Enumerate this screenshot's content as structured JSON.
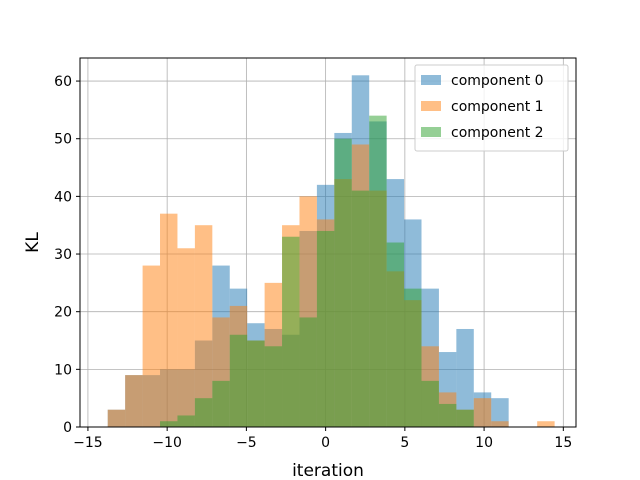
{
  "chart_data": {
    "type": "bar",
    "subtype": "overlaid-histogram",
    "title": "",
    "xlabel": "iteration",
    "ylabel": "KL",
    "xlim": [
      -15.5,
      15.8
    ],
    "ylim": [
      0,
      64
    ],
    "xticks": [
      -15,
      -10,
      -5,
      0,
      5,
      10,
      15
    ],
    "xtick_labels": [
      "−15",
      "−10",
      "−5",
      "0",
      "5",
      "10",
      "15"
    ],
    "yticks": [
      0,
      10,
      20,
      30,
      40,
      50,
      60
    ],
    "grid": true,
    "legend_position": "top-right",
    "series": [
      {
        "name": "component 0",
        "color": "#1f77b4",
        "opacity": 0.5,
        "bins": [
          {
            "x0": -13.75,
            "x1": -12.65,
            "count": 3
          },
          {
            "x0": -12.65,
            "x1": -11.55,
            "count": 9
          },
          {
            "x0": -11.55,
            "x1": -10.45,
            "count": 9
          },
          {
            "x0": -10.45,
            "x1": -9.35,
            "count": 10
          },
          {
            "x0": -9.35,
            "x1": -8.25,
            "count": 10
          },
          {
            "x0": -8.25,
            "x1": -7.15,
            "count": 15
          },
          {
            "x0": -7.15,
            "x1": -6.05,
            "count": 28
          },
          {
            "x0": -6.05,
            "x1": -4.95,
            "count": 24
          },
          {
            "x0": -4.95,
            "x1": -3.85,
            "count": 18
          },
          {
            "x0": -3.85,
            "x1": -2.75,
            "count": 17
          },
          {
            "x0": -2.75,
            "x1": -1.65,
            "count": 16
          },
          {
            "x0": -1.65,
            "x1": -0.55,
            "count": 34
          },
          {
            "x0": -0.55,
            "x1": 0.55,
            "count": 42
          },
          {
            "x0": 0.55,
            "x1": 1.65,
            "count": 51
          },
          {
            "x0": 1.65,
            "x1": 2.75,
            "count": 61
          },
          {
            "x0": 2.75,
            "x1": 3.85,
            "count": 53
          },
          {
            "x0": 3.85,
            "x1": 4.95,
            "count": 43
          },
          {
            "x0": 4.95,
            "x1": 6.05,
            "count": 36
          },
          {
            "x0": 6.05,
            "x1": 7.15,
            "count": 24
          },
          {
            "x0": 7.15,
            "x1": 8.25,
            "count": 13
          },
          {
            "x0": 8.25,
            "x1": 9.35,
            "count": 17
          },
          {
            "x0": 9.35,
            "x1": 10.45,
            "count": 6
          },
          {
            "x0": 10.45,
            "x1": 11.55,
            "count": 5
          }
        ]
      },
      {
        "name": "component 1",
        "color": "#ff7f0e",
        "opacity": 0.5,
        "bins": [
          {
            "x0": -13.75,
            "x1": -12.65,
            "count": 3
          },
          {
            "x0": -12.65,
            "x1": -11.55,
            "count": 9
          },
          {
            "x0": -11.55,
            "x1": -10.45,
            "count": 28
          },
          {
            "x0": -10.45,
            "x1": -9.35,
            "count": 37
          },
          {
            "x0": -9.35,
            "x1": -8.25,
            "count": 31
          },
          {
            "x0": -8.25,
            "x1": -7.15,
            "count": 35
          },
          {
            "x0": -7.15,
            "x1": -6.05,
            "count": 19
          },
          {
            "x0": -6.05,
            "x1": -4.95,
            "count": 21
          },
          {
            "x0": -4.95,
            "x1": -3.85,
            "count": 15
          },
          {
            "x0": -3.85,
            "x1": -2.75,
            "count": 25
          },
          {
            "x0": -2.75,
            "x1": -1.65,
            "count": 35
          },
          {
            "x0": -1.65,
            "x1": -0.55,
            "count": 40
          },
          {
            "x0": -0.55,
            "x1": 0.55,
            "count": 36
          },
          {
            "x0": 0.55,
            "x1": 1.65,
            "count": 43
          },
          {
            "x0": 1.65,
            "x1": 2.75,
            "count": 49
          },
          {
            "x0": 2.75,
            "x1": 3.85,
            "count": 41
          },
          {
            "x0": 3.85,
            "x1": 4.95,
            "count": 27
          },
          {
            "x0": 4.95,
            "x1": 6.05,
            "count": 22
          },
          {
            "x0": 6.05,
            "x1": 7.15,
            "count": 14
          },
          {
            "x0": 7.15,
            "x1": 8.25,
            "count": 6
          },
          {
            "x0": 8.25,
            "x1": 9.35,
            "count": 3
          },
          {
            "x0": 9.35,
            "x1": 10.45,
            "count": 5
          },
          {
            "x0": 10.45,
            "x1": 11.55,
            "count": 1
          },
          {
            "x0": 13.35,
            "x1": 14.45,
            "count": 1
          }
        ]
      },
      {
        "name": "component 2",
        "color": "#2ca02c",
        "opacity": 0.5,
        "bins": [
          {
            "x0": -10.45,
            "x1": -9.35,
            "count": 1
          },
          {
            "x0": -9.35,
            "x1": -8.25,
            "count": 2
          },
          {
            "x0": -8.25,
            "x1": -7.15,
            "count": 5
          },
          {
            "x0": -7.15,
            "x1": -6.05,
            "count": 8
          },
          {
            "x0": -6.05,
            "x1": -4.95,
            "count": 16
          },
          {
            "x0": -4.95,
            "x1": -3.85,
            "count": 15
          },
          {
            "x0": -3.85,
            "x1": -2.75,
            "count": 14
          },
          {
            "x0": -2.75,
            "x1": -1.65,
            "count": 33
          },
          {
            "x0": -1.65,
            "x1": -0.55,
            "count": 19
          },
          {
            "x0": -0.55,
            "x1": 0.55,
            "count": 34
          },
          {
            "x0": 0.55,
            "x1": 1.65,
            "count": 50
          },
          {
            "x0": 1.65,
            "x1": 2.75,
            "count": 41
          },
          {
            "x0": 2.75,
            "x1": 3.85,
            "count": 54
          },
          {
            "x0": 3.85,
            "x1": 4.95,
            "count": 32
          },
          {
            "x0": 4.95,
            "x1": 6.05,
            "count": 24
          },
          {
            "x0": 6.05,
            "x1": 7.15,
            "count": 8
          },
          {
            "x0": 7.15,
            "x1": 8.25,
            "count": 4
          },
          {
            "x0": 8.25,
            "x1": 9.35,
            "count": 3
          }
        ]
      }
    ]
  }
}
